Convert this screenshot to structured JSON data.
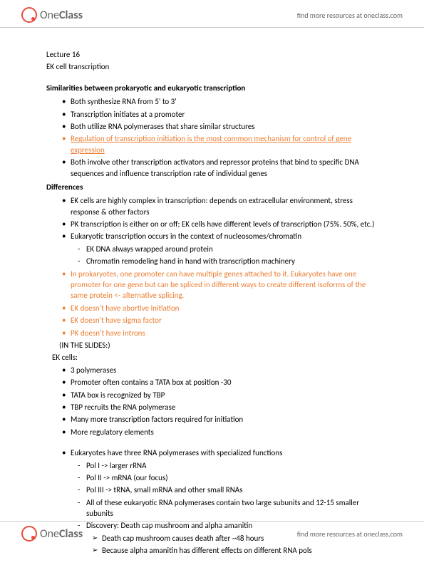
{
  "header": {
    "logo_one": "One",
    "logo_class": "Class",
    "link_text": "find more resources at oneclass.com"
  },
  "doc": {
    "lecture": "Lecture 16",
    "subtitle": "EK cell transcription",
    "heading_similarities": "Similarities between prokaryotic and eukaryotic transcription",
    "similarities": [
      "Both synthesize RNA from 5' to 3'",
      "Transcription initiates at a promoter",
      "Both utilize RNA polymerases that share similar structures"
    ],
    "similarity_orange": "Regulation of transcription initiation is the most common mechanism for control of gene expression",
    "similarity_last": "Both involve other transcription activators and repressor proteins that bind to specific DNA sequences and influence transcription rate of individual genes",
    "heading_differences": "Differences",
    "diff1": "EK cells are highly complex in transcription: depends on extracellular environment, stress response & other factors",
    "diff2": "PK transcription is either on or off; EK cells have different levels of transcription (75%. 50%, etc.)",
    "diff3": "Eukaryotic transcription occurs in the context of nucleosomes/chromatin",
    "diff3_sub1": "EK DNA always wrapped around protein",
    "diff3_sub2": "Chromatin remodeling hand in hand with transcription machinery",
    "diff4_orange": "In prokaryotes, one promoter can have multiple genes attached to it. Eukaryotes have one promoter for one gene but can be spliced in different ways to create different isoforms of the same protein <- alternative splicing.",
    "diff5_orange": "EK doesn't have abortive initiation",
    "diff6_orange": "EK doesn't have sigma factor",
    "diff7_orange": "PK doesn't have introns",
    "in_slides": "(IN THE SLIDES:)",
    "ek_cells_label": "EK cells:",
    "ek_list": [
      "3 polymerases",
      "Promoter often contains a TATA box at position -30",
      "TATA box is recognized by TBP",
      "TBP recruits the RNA polymerase",
      "Many more transcription factors required for initiation",
      "More regulatory elements"
    ],
    "euk_heading": "Eukaryotes have three RNA polymerases with specialized functions",
    "pol_list": [
      "Pol I -> larger rRNA",
      "Pol II -> mRNA (our focus)",
      "Pol III -> tRNA, small mRNA and other small RNAs",
      "All of these eukaryotic RNA polymerases contain two large subunits and 12-15 smaller subunits",
      "Discovery: Death cap mushroom and alpha amanitin"
    ],
    "arrow_list": [
      "Death cap mushroom causes death after ~48 hours",
      "Because alpha amanitin has different effects on different RNA pols"
    ]
  },
  "footer": {
    "logo_one": "One",
    "logo_class": "Class",
    "link_text": "find more resources at oneclass.com"
  }
}
